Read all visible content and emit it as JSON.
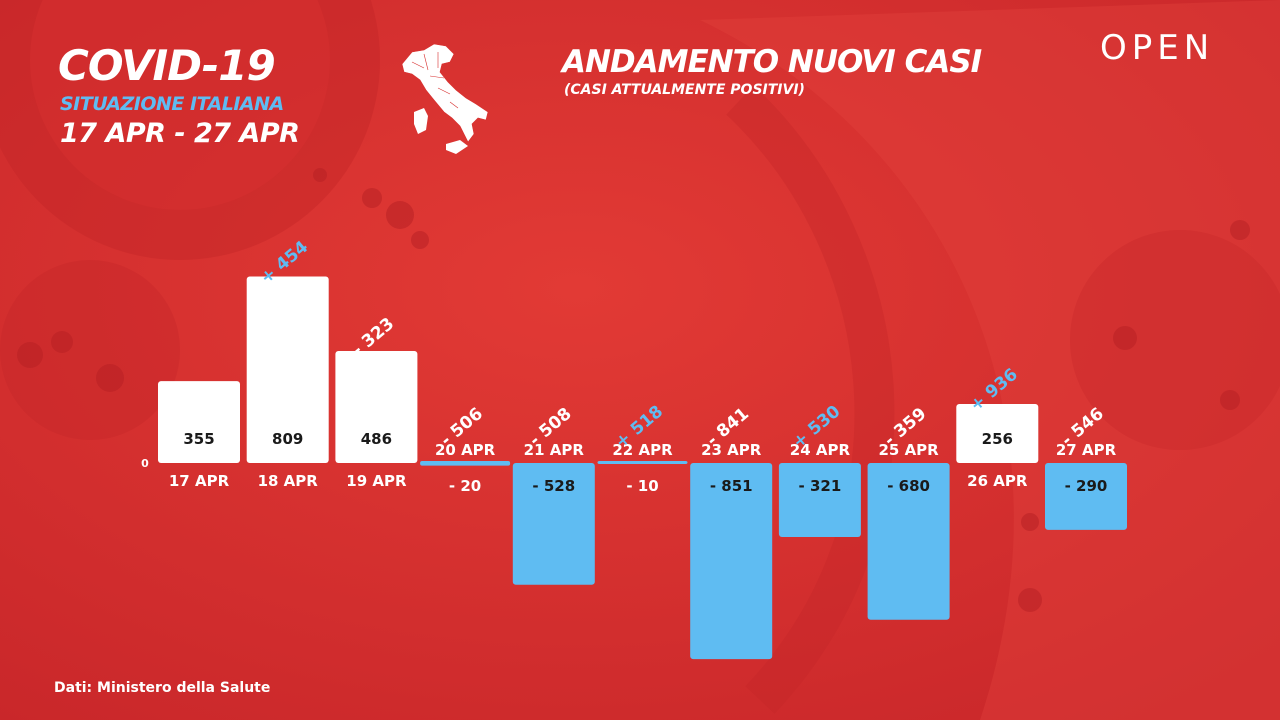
{
  "header": {
    "title": "COVID-19",
    "subtitle": "SITUAZIONE ITALIANA",
    "date_range": "17 APR - 27 APR"
  },
  "chart_header": {
    "title": "ANDAMENTO NUOVI CASI",
    "subtitle": "(CASI ATTUALMENTE POSITIVI)"
  },
  "logo": {
    "text": "OPEN"
  },
  "source": "Dati: Ministero della Salute",
  "icons": {
    "map": "italy-map-icon"
  },
  "colors": {
    "background": "#d8302f",
    "positive_bar": "#ffffff",
    "negative_bar": "#5fbcf2",
    "highlight_label": "#5fbcf2",
    "text": "#ffffff",
    "value_text": "#1a1a1a"
  },
  "chart_data": {
    "type": "bar",
    "title": "ANDAMENTO NUOVI CASI",
    "subtitle": "(CASI ATTUALMENTE POSITIVI)",
    "zero_label": "0",
    "categories": [
      "17 APR",
      "18 APR",
      "19 APR",
      "20 APR",
      "21 APR",
      "22 APR",
      "23 APR",
      "24 APR",
      "25 APR",
      "26 APR",
      "27 APR"
    ],
    "values": [
      355,
      809,
      486,
      -20,
      -528,
      -10,
      -851,
      -321,
      -680,
      256,
      -290
    ],
    "value_labels": [
      "355",
      "809",
      "486",
      "- 20",
      "- 528",
      "- 10",
      "- 851",
      "- 321",
      "- 680",
      "256",
      "- 290"
    ],
    "change_labels": [
      {
        "text": "",
        "positive": false
      },
      {
        "text": "+ 454",
        "positive": true
      },
      {
        "text": "- 323",
        "positive": false
      },
      {
        "text": "- 506",
        "positive": false
      },
      {
        "text": "- 508",
        "positive": false
      },
      {
        "text": "+ 518",
        "positive": true
      },
      {
        "text": "- 841",
        "positive": false
      },
      {
        "text": "+ 530",
        "positive": true
      },
      {
        "text": "- 359",
        "positive": false
      },
      {
        "text": "+ 936",
        "positive": true
      },
      {
        "text": "- 546",
        "positive": false
      }
    ],
    "ylim": [
      -851,
      809
    ],
    "grid": false,
    "legend": "none"
  }
}
